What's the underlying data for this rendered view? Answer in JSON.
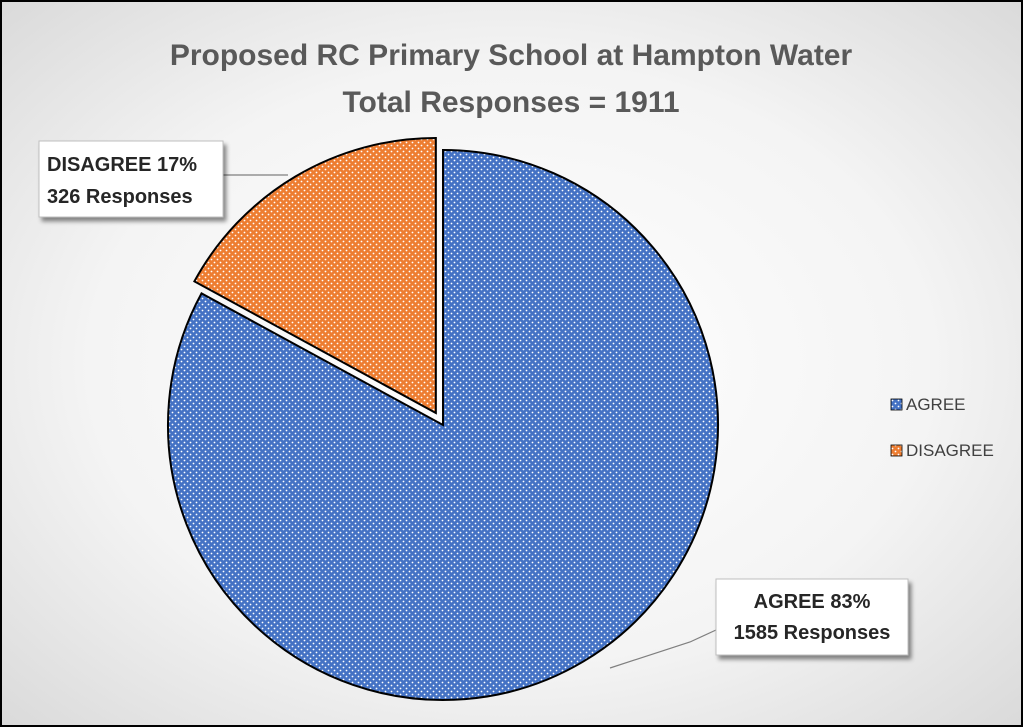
{
  "chart_data": {
    "type": "pie",
    "title": "Proposed RC Primary School at Hampton Water",
    "subtitle": "Total Responses = 1911",
    "slices": [
      {
        "name": "AGREE",
        "value": 1585,
        "percent": 83,
        "label_line1": "AGREE 83%",
        "label_line2": "1585 Responses",
        "color": "#4472C4"
      },
      {
        "name": "DISAGREE",
        "value": 326,
        "percent": 17,
        "label_line1": "DISAGREE 17%",
        "label_line2": "326 Responses",
        "color": "#ED7D31"
      }
    ],
    "legend": {
      "placement": "right",
      "entries": [
        "AGREE",
        "DISAGREE"
      ]
    },
    "exploded_slice": "DISAGREE",
    "pattern": "dotted"
  }
}
